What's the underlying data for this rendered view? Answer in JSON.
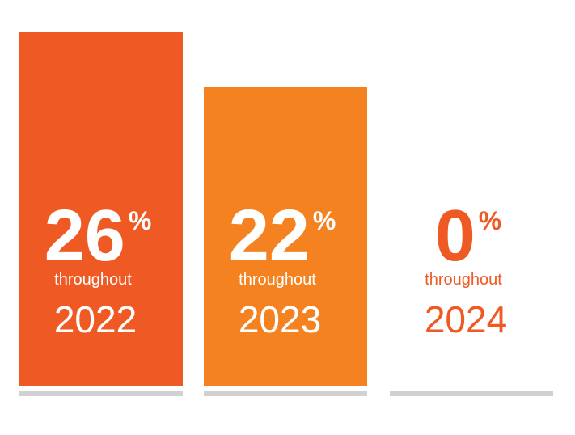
{
  "chart_data": {
    "type": "bar",
    "categories": [
      "2022",
      "2023",
      "2024"
    ],
    "values": [
      26,
      22,
      0
    ],
    "unit": "%",
    "ylim": [
      0,
      26
    ],
    "grid": false,
    "labels": [
      {
        "value": "26",
        "unit": "%",
        "sub": "throughout",
        "year": "2022"
      },
      {
        "value": "22",
        "unit": "%",
        "sub": "throughout",
        "year": "2023"
      },
      {
        "value": "0",
        "unit": "%",
        "sub": "throughout",
        "year": "2024"
      }
    ]
  },
  "colors": {
    "bar_2022": "#ef5a24",
    "bar_2023": "#f58220",
    "label_on_bar": "#ffffff",
    "label_off_bar": "#ef5a24",
    "baseline": "#d1d1d1"
  }
}
